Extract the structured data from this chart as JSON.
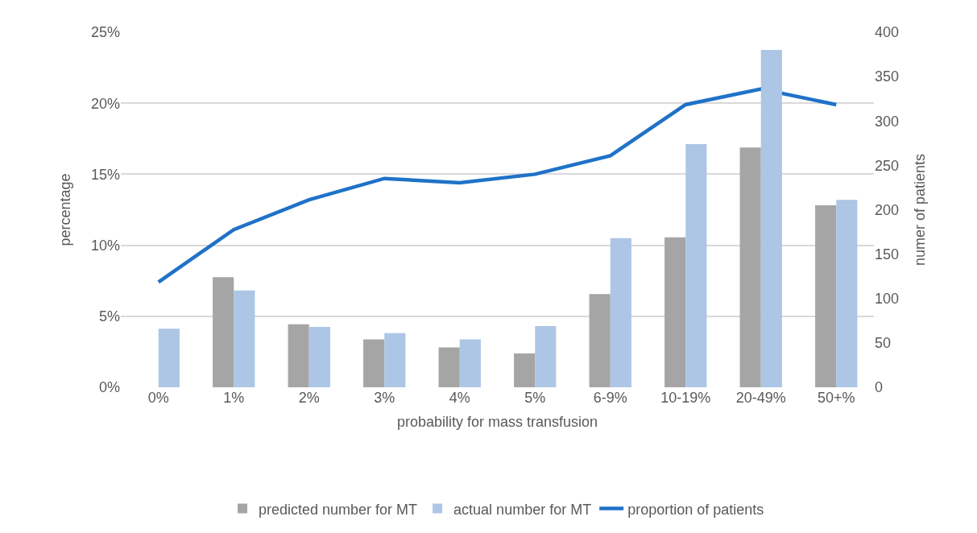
{
  "chart_data": {
    "type": "bar",
    "xlabel": "probability for mass transfusion",
    "ylabel": "percentage",
    "y2label": "numer of patients",
    "categories": [
      "0%",
      "1%",
      "2%",
      "3%",
      "4%",
      "5%",
      "6-9%",
      "10-19%",
      "20-49%",
      "50+%"
    ],
    "series": [
      {
        "name": "predicted number for MT",
        "axis": "y2",
        "color": "#a5a5a5",
        "values": [
          null,
          124,
          71,
          54,
          45,
          38,
          105,
          169,
          270,
          205
        ]
      },
      {
        "name": "actual number for MT",
        "axis": "y2",
        "color": "#adc6e5",
        "values": [
          66,
          109,
          68,
          61,
          54,
          69,
          168,
          274,
          380,
          211
        ]
      },
      {
        "name": "proportion of patients",
        "type": "line",
        "color": "#1f72c8",
        "values": [
          7.4,
          11.1,
          13.2,
          14.7,
          14.4,
          15.0,
          16.3,
          19.9,
          21.0,
          19.9
        ]
      }
    ],
    "ylim": [
      0,
      25
    ],
    "yticks": [
      {
        "value": 0,
        "label": "0%"
      },
      {
        "value": 5,
        "label": "5%"
      },
      {
        "value": 10,
        "label": "10%"
      },
      {
        "value": 15,
        "label": "15%"
      },
      {
        "value": 20,
        "label": "20%"
      },
      {
        "value": 25,
        "label": "25%"
      }
    ],
    "y2lim": [
      0,
      400
    ],
    "y2ticks": [
      0,
      50,
      100,
      150,
      200,
      250,
      300,
      350,
      400
    ],
    "grid": "y",
    "legend": "bottom",
    "marker": "none",
    "line_style": "solid"
  }
}
